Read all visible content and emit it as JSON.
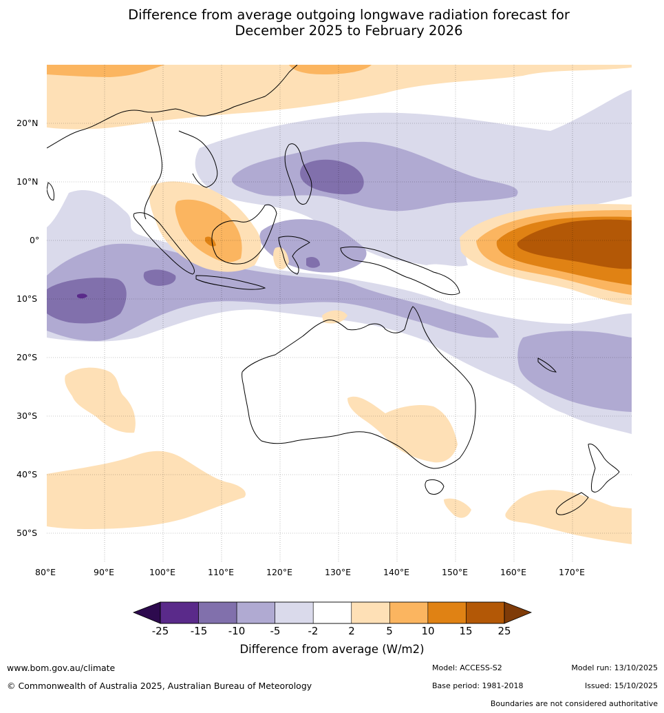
{
  "title": {
    "line1": "Difference from average outgoing longwave radiation forecast for",
    "line2": "December 2025 to February 2026"
  },
  "map": {
    "region": "Indo-Pacific and Australia",
    "lon_labels": [
      "80°E",
      "90°E",
      "100°E",
      "110°E",
      "120°E",
      "130°E",
      "140°E",
      "150°E",
      "160°E",
      "170°E"
    ],
    "lat_labels": [
      "20°N",
      "10°N",
      "0°",
      "10°S",
      "20°S",
      "30°S",
      "40°S",
      "50°S"
    ],
    "anomaly_areas": [
      {
        "name": "central-pacific-positive",
        "level": "15 to 25"
      },
      {
        "name": "south-china-sea-positive",
        "level": "5 to 10"
      },
      {
        "name": "philippines-negative",
        "level": "-15 to -10"
      },
      {
        "name": "eastern-indian-ocean-negative",
        "level": "-15 to -10"
      },
      {
        "name": "southwest-pacific-negative",
        "level": "-10 to -5"
      },
      {
        "name": "southern-australia-positive",
        "level": "2 to 5"
      },
      {
        "name": "southern-ocean-positive",
        "level": "2 to 5"
      }
    ]
  },
  "colorbar": {
    "labels": [
      "-25",
      "-15",
      "-10",
      "-5",
      "-2",
      "2",
      "5",
      "10",
      "15",
      "25"
    ],
    "colors": [
      "#5a2a8a",
      "#8170ac",
      "#b0aad2",
      "#dadaeb",
      "#ffffff",
      "#fee0b6",
      "#fbb560",
      "#e08214",
      "#b35806"
    ],
    "low_extend_color": "#2d0a4e",
    "high_extend_color": "#7f3b08",
    "title": "Difference from average (W/m2)"
  },
  "footer": {
    "website": "www.bom.gov.au/climate",
    "copyright": "© Commonwealth of Australia 2025, Australian Bureau of Meteorology",
    "model": "Model: ACCESS-S2",
    "base_period": "Base period: 1981-2018",
    "model_run": "Model run: 13/10/2025",
    "issued": "Issued: 15/10/2025",
    "disclaimer": "Boundaries are not considered authoritative"
  }
}
